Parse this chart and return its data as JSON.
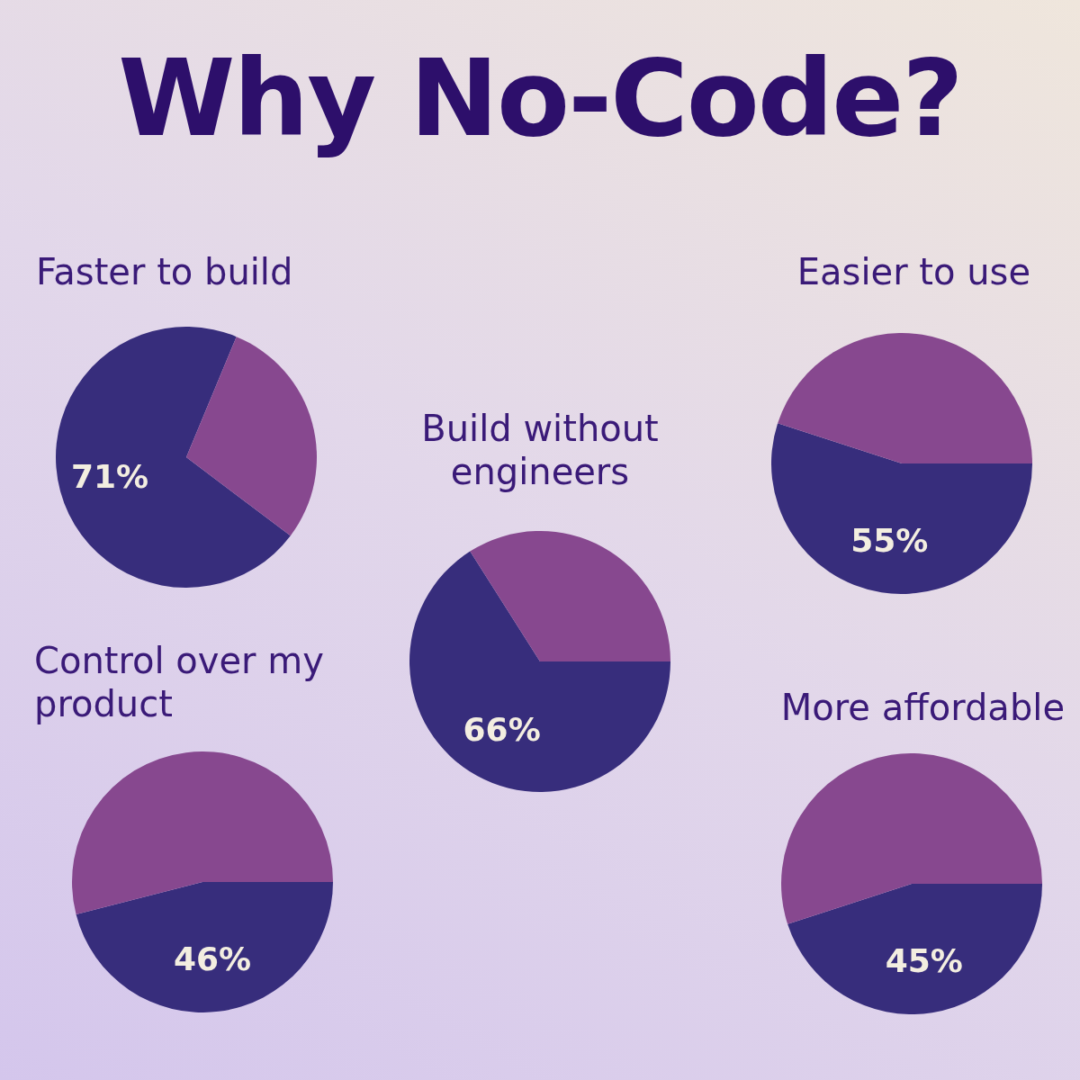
{
  "chart_data": [
    {
      "type": "other",
      "title": "Why No-Code?"
    },
    {
      "type": "pie",
      "title": "Faster to build",
      "categories": [
        null,
        null
      ],
      "values": [
        71,
        29
      ],
      "colors": [
        "#372d7c",
        "#87488f"
      ],
      "value_labels": [
        "71%",
        null
      ]
    },
    {
      "type": "pie",
      "title": "Easier to use",
      "categories": [
        null,
        null
      ],
      "values": [
        55,
        45
      ],
      "colors": [
        "#372d7c",
        "#87488f"
      ],
      "value_labels": [
        "55%",
        null
      ]
    },
    {
      "type": "pie",
      "title": "Build without engineers",
      "categories": [
        null,
        null
      ],
      "values": [
        66,
        34
      ],
      "colors": [
        "#372d7c",
        "#87488f"
      ],
      "value_labels": [
        "66%",
        null
      ]
    },
    {
      "type": "pie",
      "title": "Control over my product",
      "categories": [
        null,
        null
      ],
      "values": [
        46,
        54
      ],
      "colors": [
        "#372d7c",
        "#87488f"
      ],
      "value_labels": [
        "46%",
        null
      ]
    },
    {
      "type": "pie",
      "title": "More affordable",
      "categories": [
        null,
        null
      ],
      "values": [
        45,
        55
      ],
      "colors": [
        "#372d7c",
        "#87488f"
      ],
      "value_labels": [
        "45%",
        null
      ]
    }
  ]
}
